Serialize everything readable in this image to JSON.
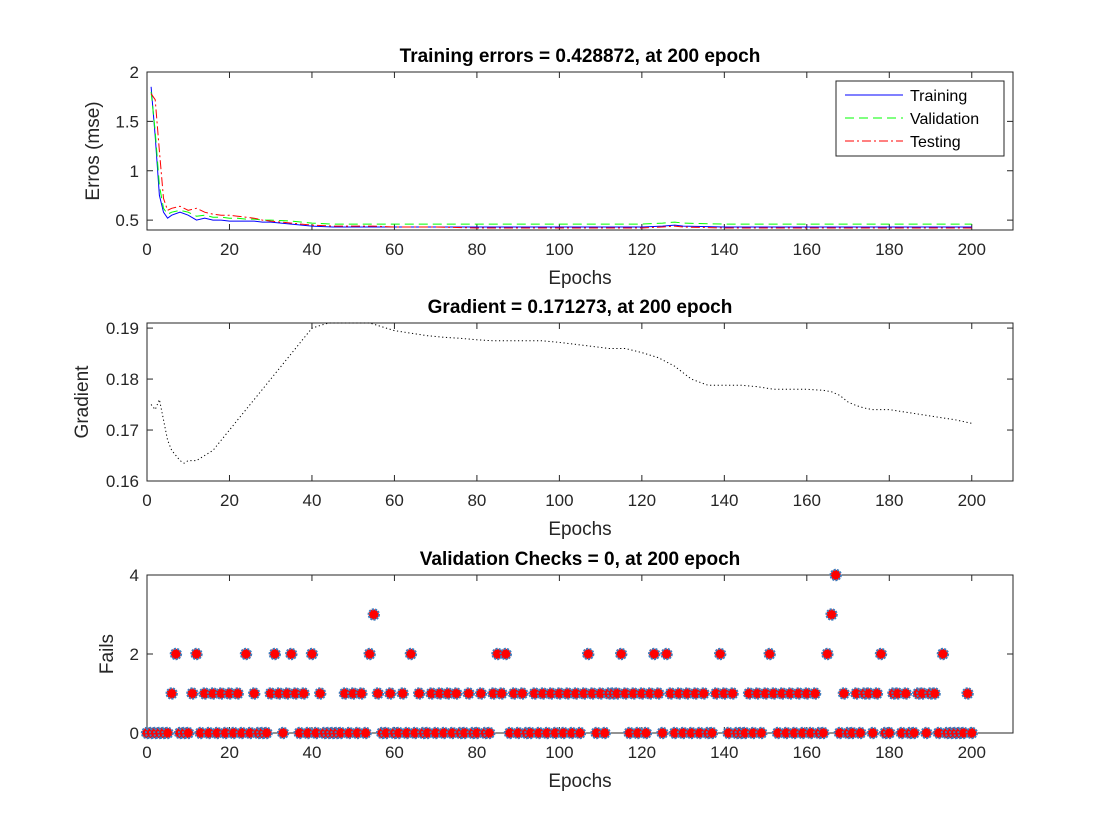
{
  "chart_data": [
    {
      "type": "line",
      "title": "Training errors = 0.428872, at 200 epoch",
      "xlabel": "Epochs",
      "ylabel": "Erros (mse)",
      "xlim": [
        0,
        210
      ],
      "ylim": [
        0.4,
        2
      ],
      "xticks": [
        "0",
        "20",
        "40",
        "60",
        "80",
        "100",
        "120",
        "140",
        "160",
        "180",
        "200"
      ],
      "yticks": [
        "0.5",
        "1",
        "1.5",
        "2"
      ],
      "legend_position": "top-right",
      "x": [
        1,
        2,
        3,
        4,
        5,
        6,
        8,
        10,
        12,
        14,
        16,
        18,
        20,
        22,
        24,
        26,
        28,
        30,
        35,
        40,
        45,
        50,
        55,
        60,
        70,
        80,
        90,
        100,
        110,
        120,
        125,
        128,
        130,
        140,
        150,
        160,
        170,
        180,
        190,
        200
      ],
      "series": [
        {
          "name": "Training",
          "color": "#0000ff",
          "style": "solid",
          "values": [
            1.85,
            1.35,
            0.75,
            0.58,
            0.52,
            0.55,
            0.58,
            0.55,
            0.5,
            0.52,
            0.5,
            0.5,
            0.49,
            0.49,
            0.49,
            0.49,
            0.48,
            0.48,
            0.46,
            0.44,
            0.43,
            0.43,
            0.43,
            0.43,
            0.43,
            0.43,
            0.43,
            0.43,
            0.43,
            0.43,
            0.44,
            0.45,
            0.44,
            0.43,
            0.43,
            0.43,
            0.43,
            0.43,
            0.43,
            0.43
          ]
        },
        {
          "name": "Validation",
          "color": "#00ff00",
          "style": "dashed",
          "values": [
            1.8,
            1.4,
            0.85,
            0.62,
            0.56,
            0.58,
            0.6,
            0.58,
            0.54,
            0.55,
            0.53,
            0.53,
            0.52,
            0.52,
            0.51,
            0.51,
            0.5,
            0.5,
            0.49,
            0.47,
            0.46,
            0.46,
            0.46,
            0.46,
            0.46,
            0.46,
            0.46,
            0.46,
            0.46,
            0.46,
            0.47,
            0.48,
            0.47,
            0.46,
            0.46,
            0.46,
            0.46,
            0.46,
            0.46,
            0.46
          ]
        },
        {
          "name": "Testing",
          "color": "#ff0000",
          "style": "dashdot",
          "values": [
            1.78,
            1.72,
            1.2,
            0.72,
            0.6,
            0.62,
            0.64,
            0.6,
            0.62,
            0.58,
            0.56,
            0.55,
            0.55,
            0.54,
            0.53,
            0.52,
            0.5,
            0.49,
            0.47,
            0.45,
            0.44,
            0.44,
            0.44,
            0.43,
            0.43,
            0.42,
            0.42,
            0.42,
            0.42,
            0.42,
            0.43,
            0.44,
            0.43,
            0.42,
            0.42,
            0.42,
            0.42,
            0.42,
            0.42,
            0.42
          ]
        }
      ]
    },
    {
      "type": "line",
      "title": "Gradient = 0.171273, at 200 epoch",
      "xlabel": "Epochs",
      "ylabel": "Gradient",
      "xlim": [
        0,
        210
      ],
      "ylim": [
        0.16,
        0.191
      ],
      "xticks": [
        "0",
        "20",
        "40",
        "60",
        "80",
        "100",
        "120",
        "140",
        "160",
        "180",
        "200"
      ],
      "yticks": [
        "0.16",
        "0.17",
        "0.18",
        "0.19"
      ],
      "x": [
        1,
        2,
        3,
        4,
        5,
        6,
        7,
        8,
        9,
        10,
        12,
        14,
        16,
        18,
        20,
        22,
        24,
        26,
        28,
        30,
        32,
        34,
        36,
        38,
        40,
        42,
        44,
        46,
        48,
        50,
        52,
        54,
        56,
        58,
        60,
        64,
        68,
        72,
        76,
        80,
        84,
        88,
        92,
        96,
        100,
        104,
        108,
        112,
        116,
        120,
        124,
        128,
        132,
        136,
        140,
        144,
        148,
        152,
        156,
        160,
        164,
        166,
        168,
        170,
        172,
        174,
        176,
        178,
        180,
        184,
        188,
        192,
        196,
        200
      ],
      "series": [
        {
          "name": "",
          "color": "#000000",
          "style": "dotted",
          "values": [
            0.175,
            0.174,
            0.176,
            0.172,
            0.168,
            0.166,
            0.165,
            0.164,
            0.1635,
            0.164,
            0.164,
            0.165,
            0.166,
            0.168,
            0.17,
            0.172,
            0.174,
            0.176,
            0.178,
            0.18,
            0.182,
            0.184,
            0.186,
            0.188,
            0.19,
            0.1905,
            0.191,
            0.191,
            0.191,
            0.191,
            0.191,
            0.191,
            0.1905,
            0.19,
            0.1895,
            0.189,
            0.1885,
            0.1882,
            0.188,
            0.1877,
            0.1875,
            0.1875,
            0.1875,
            0.1875,
            0.1872,
            0.1868,
            0.1864,
            0.186,
            0.186,
            0.1852,
            0.1842,
            0.1825,
            0.18,
            0.1788,
            0.1788,
            0.1788,
            0.1785,
            0.178,
            0.178,
            0.178,
            0.1778,
            0.1775,
            0.1768,
            0.1755,
            0.1748,
            0.1743,
            0.174,
            0.174,
            0.174,
            0.1735,
            0.173,
            0.1725,
            0.172,
            0.1713
          ]
        }
      ]
    },
    {
      "type": "scatter",
      "title": "Validation Checks = 0, at 200 epoch",
      "xlabel": "Epochs",
      "ylabel": "Fails",
      "xlim": [
        0,
        210
      ],
      "ylim": [
        0,
        4
      ],
      "xticks": [
        "0",
        "20",
        "40",
        "60",
        "80",
        "100",
        "120",
        "140",
        "160",
        "180",
        "200"
      ],
      "yticks": [
        "0",
        "2",
        "4"
      ],
      "marker_edge_color": "#3d7ebf",
      "marker_face_color": "#ff0000",
      "x": [
        0,
        1,
        2,
        3,
        4,
        5,
        6,
        7,
        8,
        9,
        10,
        11,
        12,
        13,
        14,
        15,
        16,
        17,
        18,
        19,
        20,
        21,
        22,
        23,
        24,
        25,
        26,
        27,
        28,
        29,
        30,
        31,
        32,
        33,
        34,
        35,
        36,
        37,
        38,
        39,
        40,
        41,
        42,
        43,
        44,
        45,
        46,
        47,
        48,
        49,
        50,
        51,
        52,
        53,
        54,
        55,
        56,
        57,
        58,
        59,
        60,
        61,
        62,
        63,
        64,
        65,
        66,
        67,
        68,
        69,
        70,
        71,
        72,
        73,
        74,
        75,
        76,
        77,
        78,
        79,
        80,
        81,
        82,
        83,
        84,
        85,
        86,
        87,
        88,
        89,
        90,
        91,
        92,
        93,
        94,
        95,
        96,
        97,
        98,
        99,
        100,
        101,
        102,
        103,
        104,
        105,
        106,
        107,
        108,
        109,
        110,
        111,
        112,
        113,
        114,
        115,
        116,
        117,
        118,
        119,
        120,
        121,
        122,
        123,
        124,
        125,
        126,
        127,
        128,
        129,
        130,
        131,
        132,
        133,
        134,
        135,
        136,
        137,
        138,
        139,
        140,
        141,
        142,
        143,
        144,
        145,
        146,
        147,
        148,
        149,
        150,
        151,
        152,
        153,
        154,
        155,
        156,
        157,
        158,
        159,
        160,
        161,
        162,
        163,
        164,
        165,
        166,
        167,
        168,
        169,
        170,
        171,
        172,
        173,
        174,
        175,
        176,
        177,
        178,
        179,
        180,
        181,
        182,
        183,
        184,
        185,
        186,
        187,
        188,
        189,
        190,
        191,
        192,
        193,
        194,
        195,
        196,
        197,
        198,
        199,
        200
      ],
      "values": [
        0,
        0,
        0,
        0,
        0,
        0,
        1,
        2,
        0,
        0,
        0,
        1,
        2,
        0,
        1,
        0,
        1,
        0,
        1,
        0,
        1,
        0,
        1,
        0,
        2,
        0,
        1,
        0,
        0,
        0,
        1,
        2,
        1,
        0,
        1,
        2,
        1,
        0,
        1,
        0,
        2,
        0,
        1,
        0,
        0,
        0,
        0,
        0,
        1,
        0,
        1,
        0,
        1,
        0,
        2,
        3,
        1,
        0,
        0,
        1,
        0,
        0,
        1,
        0,
        2,
        0,
        1,
        0,
        0,
        1,
        0,
        1,
        0,
        1,
        0,
        1,
        0,
        0,
        1,
        0,
        0,
        1,
        0,
        0,
        1,
        2,
        1,
        2,
        0,
        1,
        0,
        1,
        0,
        0,
        1,
        0,
        1,
        0,
        1,
        0,
        1,
        0,
        1,
        0,
        1,
        0,
        1,
        2,
        1,
        0,
        1,
        0,
        1,
        1,
        1,
        2,
        1,
        0,
        1,
        0,
        1,
        0,
        1,
        2,
        1,
        0,
        2,
        1,
        0,
        1,
        0,
        1,
        0,
        1,
        0,
        1,
        0,
        0,
        1,
        2,
        1,
        0,
        1,
        0,
        0,
        0,
        1,
        0,
        1,
        0,
        1,
        2,
        1,
        0,
        1,
        0,
        1,
        0,
        1,
        0,
        1,
        0,
        1,
        0,
        0,
        2,
        3,
        4,
        0,
        1,
        0,
        0,
        1,
        0,
        1,
        1,
        0,
        1,
        2,
        0,
        0,
        1,
        1,
        0,
        1,
        0,
        0,
        1,
        1,
        0,
        1,
        1,
        0,
        2,
        0,
        0,
        0,
        0,
        0,
        1,
        0
      ]
    }
  ]
}
